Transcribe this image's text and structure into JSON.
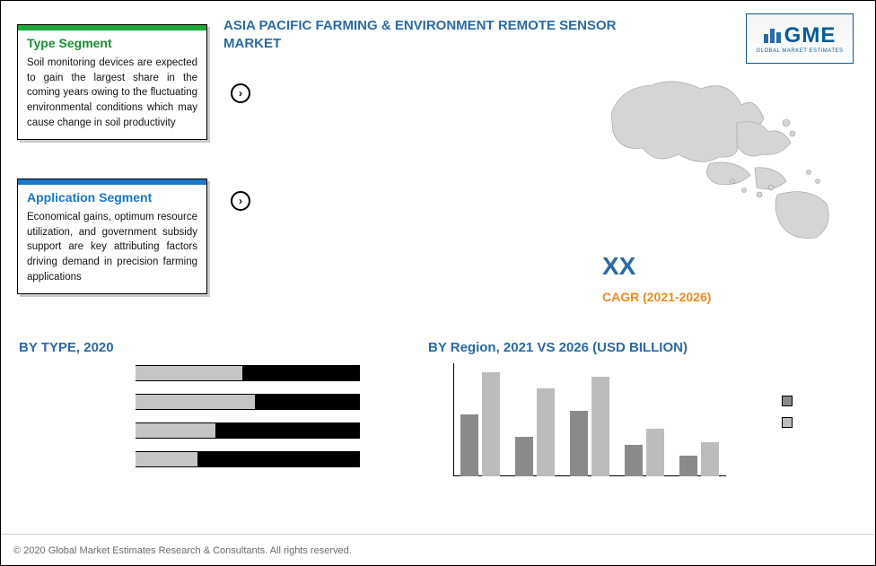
{
  "title": "ASIA PACIFIC FARMING & ENVIRONMENT REMOTE SENSOR MARKET",
  "logo": {
    "text": "GME",
    "subtext": "GLOBAL MARKET ESTIMATES"
  },
  "segments": {
    "type": {
      "title": "Type Segment",
      "body": "Soil monitoring devices are expected to gain the largest share in the coming years owing to the fluctuating environmental conditions which may cause change in soil productivity",
      "strip_color": "#1fa83a",
      "title_color": "#1a8e32"
    },
    "application": {
      "title": "Application Segment",
      "body": "Economical gains, optimum resource utilization, and government subsidy support are key attributing factors driving demand in precision farming applications",
      "strip_color": "#1a77c9",
      "title_color": "#1a77c9"
    }
  },
  "bullets": {
    "top": "",
    "bottom": ""
  },
  "metric": {
    "value": "XX",
    "label": "CAGR (2021-2026)",
    "value_color": "#2b6aa6",
    "label_color": "#f48a1d"
  },
  "by_type": {
    "title": "BY  TYPE, 2020",
    "type": "bar-horizontal",
    "bar_fill": "#c5c5c5",
    "bar_bg": "#000000",
    "rows": [
      {
        "label": "",
        "value": 0.48
      },
      {
        "label": "",
        "value": 0.54
      },
      {
        "label": "",
        "value": 0.36
      },
      {
        "label": "",
        "value": 0.28
      }
    ]
  },
  "by_region": {
    "title": "BY Region,  2021 VS 2026 (USD BILLION)",
    "type": "bar-grouped",
    "series_colors": [
      "#8a8a8a",
      "#bcbcbc"
    ],
    "series_labels": [
      "",
      ""
    ],
    "ylim": [
      0,
      1
    ],
    "groups": [
      {
        "label": "",
        "v1": 0.55,
        "v2": 0.92
      },
      {
        "label": "",
        "v1": 0.35,
        "v2": 0.78
      },
      {
        "label": "",
        "v1": 0.58,
        "v2": 0.88
      },
      {
        "label": "",
        "v1": 0.28,
        "v2": 0.42
      },
      {
        "label": "",
        "v1": 0.18,
        "v2": 0.3
      }
    ]
  },
  "map": {
    "fill": "#d5d5d5",
    "stroke": "#9e9e9e"
  },
  "copyright": "© 2020 Global Market Estimates Research & Consultants. All rights reserved."
}
